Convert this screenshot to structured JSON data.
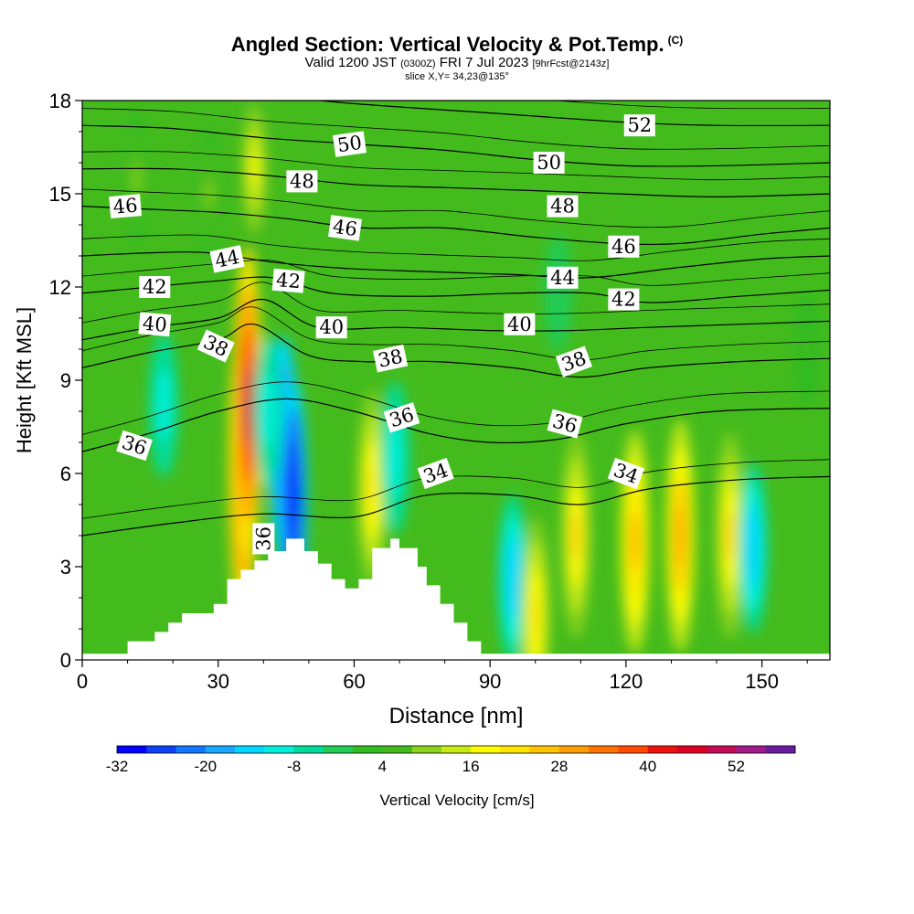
{
  "header": {
    "title": "Angled Section: Vertical Velocity & Pot.Temp.",
    "copyright": "(C)",
    "valid_prefix": "Valid 1200 JST",
    "valid_utc": "(0300Z)",
    "valid_date": "FRI 7 Jul 2023",
    "forecast": "[9hrFcst@2143z]",
    "slice": "slice X,Y= 34,23@135°"
  },
  "colors": {
    "background": "#ffffff",
    "terrain": "#ffffff",
    "contour": "#000000",
    "base_field": "#44bb1d"
  },
  "chart_data": {
    "type": "heatmap",
    "xlabel": "Distance [nm]",
    "ylabel": "Height [Kft MSL]",
    "xlim": [
      0,
      165
    ],
    "ylim": [
      0,
      18
    ],
    "xticks": [
      "0",
      "30",
      "60",
      "90",
      "120",
      "150"
    ],
    "yticks": [
      "0",
      "3",
      "6",
      "9",
      "12",
      "15",
      "18"
    ],
    "colorbar": {
      "label": "Vertical Velocity [cm/s]",
      "tick_labels": [
        "-32",
        "-20",
        "-8",
        "4",
        "16",
        "28",
        "40",
        "52"
      ],
      "levels": [
        -32,
        -28,
        -24,
        -20,
        -16,
        -12,
        -8,
        -4,
        0,
        4,
        8,
        12,
        16,
        20,
        24,
        28,
        32,
        36,
        40,
        44,
        48,
        52,
        56
      ],
      "colors": [
        "#0000ff",
        "#0d3ff7",
        "#0f78ff",
        "#18a7ff",
        "#00d7ff",
        "#00f0dd",
        "#00dd9b",
        "#22cc55",
        "#33bb22",
        "#44bb1d",
        "#88d31a",
        "#c6ea12",
        "#fffc00",
        "#ffe400",
        "#ffc300",
        "#ff9d00",
        "#ff7200",
        "#ff4a00",
        "#ee1111",
        "#dd0022",
        "#c40a55",
        "#a01a88",
        "#6a1ba0"
      ]
    },
    "vertical_velocity_features": [
      {
        "x": 35.5,
        "y": 6.2,
        "peak": 44
      },
      {
        "x": 36.5,
        "y": 8.2,
        "peak": 48
      },
      {
        "x": 44.5,
        "y": 6.8,
        "peak": -28
      },
      {
        "x": 46.5,
        "y": 5.2,
        "peak": -32
      },
      {
        "x": 41.0,
        "y": 8.0,
        "peak": -12
      },
      {
        "x": 64.0,
        "y": 5.5,
        "peak": 22
      },
      {
        "x": 69.0,
        "y": 6.5,
        "peak": -12
      },
      {
        "x": 38.0,
        "y": 15.8,
        "peak": 16
      },
      {
        "x": 28.0,
        "y": 15.0,
        "peak": 8
      },
      {
        "x": 95.0,
        "y": 2.6,
        "peak": -16
      },
      {
        "x": 100.0,
        "y": 1.4,
        "peak": 22
      },
      {
        "x": 109.0,
        "y": 4.0,
        "peak": 24
      },
      {
        "x": 122.0,
        "y": 3.8,
        "peak": 28
      },
      {
        "x": 132.0,
        "y": 4.0,
        "peak": 30
      },
      {
        "x": 143.0,
        "y": 4.0,
        "peak": 24
      },
      {
        "x": 148.0,
        "y": 3.6,
        "peak": -16
      },
      {
        "x": 18.0,
        "y": 8.2,
        "peak": -10
      },
      {
        "x": 105.0,
        "y": 11.8,
        "peak": -4
      },
      {
        "x": 160.0,
        "y": 10.0,
        "peak": 4
      },
      {
        "x": 12.0,
        "y": 15.5,
        "peak": 8
      }
    ],
    "terrain_profile": [
      [
        10,
        0
      ],
      [
        10,
        0.6
      ],
      [
        16,
        0.6
      ],
      [
        16,
        0.9
      ],
      [
        19,
        0.9
      ],
      [
        19,
        1.2
      ],
      [
        22,
        1.2
      ],
      [
        22,
        1.5
      ],
      [
        29,
        1.5
      ],
      [
        29,
        1.8
      ],
      [
        32,
        1.8
      ],
      [
        32,
        2.6
      ],
      [
        35,
        2.6
      ],
      [
        35,
        2.9
      ],
      [
        38,
        2.9
      ],
      [
        38,
        3.2
      ],
      [
        41,
        3.2
      ],
      [
        41,
        3.5
      ],
      [
        45,
        3.5
      ],
      [
        45,
        3.9
      ],
      [
        49,
        3.9
      ],
      [
        49,
        3.5
      ],
      [
        52,
        3.5
      ],
      [
        52,
        3.1
      ],
      [
        55,
        3.1
      ],
      [
        55,
        2.6
      ],
      [
        58,
        2.6
      ],
      [
        58,
        2.3
      ],
      [
        61,
        2.3
      ],
      [
        61,
        2.6
      ],
      [
        64,
        2.6
      ],
      [
        64,
        3.6
      ],
      [
        68,
        3.6
      ],
      [
        68,
        3.9
      ],
      [
        70,
        3.9
      ],
      [
        70,
        3.6
      ],
      [
        74,
        3.6
      ],
      [
        74,
        3.0
      ],
      [
        76,
        3.0
      ],
      [
        76,
        2.4
      ],
      [
        79,
        2.4
      ],
      [
        79,
        1.8
      ],
      [
        82,
        1.8
      ],
      [
        82,
        1.2
      ],
      [
        85,
        1.2
      ],
      [
        85,
        0.6
      ],
      [
        88,
        0.6
      ],
      [
        88,
        0
      ]
    ],
    "theta_contours": [
      {
        "label": "34",
        "points": [
          [
            0,
            4.0
          ],
          [
            20,
            4.4
          ],
          [
            40,
            4.7
          ],
          [
            60,
            4.6
          ],
          [
            76,
            5.3
          ],
          [
            95,
            5.3
          ],
          [
            110,
            5.0
          ],
          [
            125,
            5.5
          ],
          [
            145,
            5.8
          ],
          [
            165,
            5.9
          ]
        ]
      },
      {
        "label": "36",
        "points": [
          [
            0,
            6.7
          ],
          [
            15,
            7.3
          ],
          [
            30,
            8.0
          ],
          [
            45,
            8.4
          ],
          [
            60,
            8.0
          ],
          [
            76,
            7.3
          ],
          [
            90,
            7.0
          ],
          [
            105,
            7.1
          ],
          [
            120,
            7.6
          ],
          [
            140,
            8.0
          ],
          [
            165,
            8.1
          ]
        ]
      },
      {
        "label": "38",
        "points": [
          [
            0,
            9.4
          ],
          [
            15,
            9.9
          ],
          [
            30,
            10.3
          ],
          [
            38,
            10.8
          ],
          [
            50,
            9.8
          ],
          [
            62,
            9.6
          ],
          [
            78,
            9.6
          ],
          [
            95,
            9.4
          ],
          [
            110,
            9.1
          ],
          [
            125,
            9.4
          ],
          [
            145,
            9.6
          ],
          [
            165,
            9.7
          ]
        ]
      },
      {
        "label": "40",
        "points": [
          [
            0,
            10.3
          ],
          [
            15,
            10.7
          ],
          [
            30,
            11.0
          ],
          [
            40,
            11.6
          ],
          [
            52,
            10.7
          ],
          [
            70,
            10.7
          ],
          [
            90,
            10.6
          ],
          [
            108,
            10.6
          ],
          [
            125,
            10.7
          ],
          [
            145,
            10.8
          ],
          [
            165,
            10.9
          ]
        ]
      },
      {
        "label": "42",
        "points": [
          [
            0,
            11.8
          ],
          [
            15,
            12.0
          ],
          [
            30,
            12.2
          ],
          [
            42,
            12.3
          ],
          [
            55,
            11.8
          ],
          [
            75,
            11.7
          ],
          [
            95,
            11.8
          ],
          [
            112,
            11.8
          ],
          [
            125,
            11.5
          ],
          [
            145,
            11.7
          ],
          [
            165,
            11.9
          ]
        ]
      },
      {
        "label": "44",
        "points": [
          [
            0,
            13.0
          ],
          [
            15,
            13.1
          ],
          [
            28,
            13.1
          ],
          [
            42,
            12.8
          ],
          [
            58,
            12.6
          ],
          [
            75,
            12.5
          ],
          [
            95,
            12.4
          ],
          [
            112,
            12.3
          ],
          [
            130,
            12.6
          ],
          [
            150,
            12.9
          ],
          [
            165,
            13.0
          ]
        ]
      },
      {
        "label": "46",
        "points": [
          [
            0,
            14.6
          ],
          [
            15,
            14.5
          ],
          [
            30,
            14.4
          ],
          [
            45,
            14.2
          ],
          [
            62,
            13.9
          ],
          [
            80,
            13.9
          ],
          [
            100,
            13.6
          ],
          [
            118,
            13.4
          ],
          [
            132,
            13.4
          ],
          [
            150,
            13.7
          ],
          [
            165,
            13.9
          ]
        ]
      },
      {
        "label": "48",
        "points": [
          [
            0,
            15.8
          ],
          [
            20,
            15.8
          ],
          [
            40,
            15.6
          ],
          [
            60,
            15.3
          ],
          [
            80,
            15.2
          ],
          [
            100,
            15.1
          ],
          [
            118,
            15.0
          ],
          [
            140,
            14.9
          ],
          [
            165,
            15.0
          ]
        ]
      },
      {
        "label": "50",
        "points": [
          [
            0,
            17.2
          ],
          [
            20,
            17.1
          ],
          [
            40,
            16.8
          ],
          [
            60,
            16.6
          ],
          [
            80,
            16.4
          ],
          [
            100,
            16.1
          ],
          [
            120,
            15.9
          ],
          [
            140,
            15.9
          ],
          [
            165,
            16.0
          ]
        ]
      },
      {
        "label": "52",
        "points": [
          [
            0,
            18.5
          ],
          [
            30,
            18.3
          ],
          [
            60,
            17.9
          ],
          [
            90,
            17.6
          ],
          [
            120,
            17.3
          ],
          [
            140,
            17.2
          ],
          [
            165,
            17.2
          ]
        ]
      }
    ],
    "contour_labels": [
      {
        "text": "36",
        "x": 11.5,
        "y": 6.9,
        "angle": -18
      },
      {
        "text": "38",
        "x": 29.5,
        "y": 10.1,
        "angle": -25
      },
      {
        "text": "40",
        "x": 16.0,
        "y": 10.8,
        "angle": -5
      },
      {
        "text": "42",
        "x": 16.0,
        "y": 12.0,
        "angle": 0
      },
      {
        "text": "44",
        "x": 32.0,
        "y": 12.9,
        "angle": 12
      },
      {
        "text": "46",
        "x": 9.5,
        "y": 14.6,
        "angle": 5
      },
      {
        "text": "48",
        "x": 48.5,
        "y": 15.4,
        "angle": 0
      },
      {
        "text": "50",
        "x": 59.0,
        "y": 16.6,
        "angle": 8
      },
      {
        "text": "42",
        "x": 45.5,
        "y": 12.2,
        "angle": -5
      },
      {
        "text": "46",
        "x": 58.0,
        "y": 13.9,
        "angle": -8
      },
      {
        "text": "40",
        "x": 55.0,
        "y": 10.7,
        "angle": 0
      },
      {
        "text": "38",
        "x": 68.0,
        "y": 9.7,
        "angle": 12
      },
      {
        "text": "36",
        "x": 70.5,
        "y": 7.8,
        "angle": 18
      },
      {
        "text": "34",
        "x": 78.0,
        "y": 6.0,
        "angle": 20
      },
      {
        "text": "36",
        "x": 40.0,
        "y": 3.9,
        "angle": 90
      },
      {
        "text": "40",
        "x": 96.5,
        "y": 10.8,
        "angle": 0
      },
      {
        "text": "50",
        "x": 103.0,
        "y": 16.0,
        "angle": 0
      },
      {
        "text": "48",
        "x": 106.0,
        "y": 14.6,
        "angle": 0
      },
      {
        "text": "44",
        "x": 106.0,
        "y": 12.3,
        "angle": 0
      },
      {
        "text": "38",
        "x": 108.5,
        "y": 9.6,
        "angle": 20
      },
      {
        "text": "36",
        "x": 106.5,
        "y": 7.6,
        "angle": -15
      },
      {
        "text": "46",
        "x": 119.5,
        "y": 13.3,
        "angle": 0
      },
      {
        "text": "42",
        "x": 119.5,
        "y": 11.6,
        "angle": 0
      },
      {
        "text": "52",
        "x": 123.0,
        "y": 17.2,
        "angle": 0
      },
      {
        "text": "34",
        "x": 120.0,
        "y": 6.0,
        "angle": -20
      }
    ]
  }
}
